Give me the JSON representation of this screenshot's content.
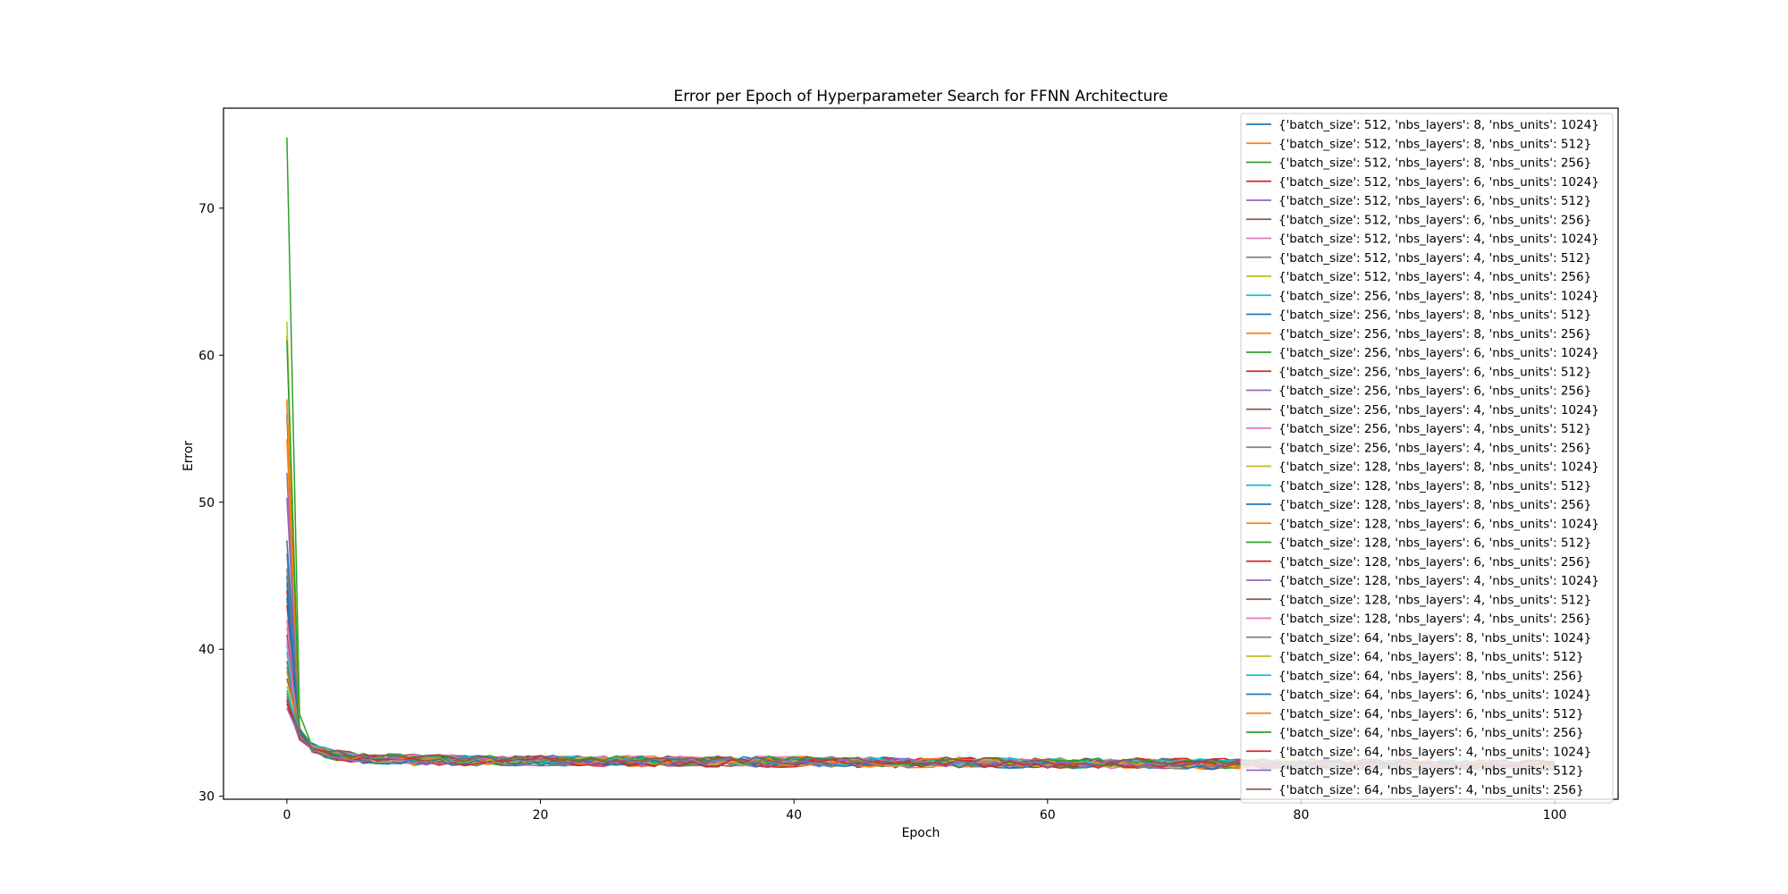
{
  "chart_data": {
    "type": "line",
    "title": "Error per Epoch of Hyperparameter Search for FFNN Architecture",
    "xlabel": "Epoch",
    "ylabel": "Error",
    "xlim": [
      -5,
      105
    ],
    "ylim": [
      29.8,
      76.8
    ],
    "xticks": [
      0,
      20,
      40,
      60,
      80,
      100
    ],
    "yticks": [
      30,
      40,
      50,
      60,
      70
    ],
    "grid": false,
    "legend_position": "top-right",
    "epochs": 101,
    "colors": [
      "#1f77b4",
      "#ff7f0e",
      "#2ca02c",
      "#d62728",
      "#9467bd",
      "#8c564b",
      "#e377c2",
      "#7f7f7f",
      "#bcbd22",
      "#17becf"
    ],
    "series": [
      {
        "name": "{'batch_size': 512, 'nbs_layers': 8, 'nbs_units': 1024}",
        "start": 45.0,
        "plateau": 32.4
      },
      {
        "name": "{'batch_size': 512, 'nbs_layers': 8, 'nbs_units': 512}",
        "start": 57.0,
        "plateau": 32.5
      },
      {
        "name": "{'batch_size': 512, 'nbs_layers': 8, 'nbs_units': 256}",
        "start": 74.8,
        "plateau": 32.6
      },
      {
        "name": "{'batch_size': 512, 'nbs_layers': 6, 'nbs_units': 1024}",
        "start": 44.0,
        "plateau": 32.4
      },
      {
        "name": "{'batch_size': 512, 'nbs_layers': 6, 'nbs_units': 512}",
        "start": 52.0,
        "plateau": 32.5
      },
      {
        "name": "{'batch_size': 512, 'nbs_layers': 6, 'nbs_units': 256}",
        "start": 56.0,
        "plateau": 32.6
      },
      {
        "name": "{'batch_size': 512, 'nbs_layers': 4, 'nbs_units': 1024}",
        "start": 41.5,
        "plateau": 32.4
      },
      {
        "name": "{'batch_size': 512, 'nbs_layers': 4, 'nbs_units': 512}",
        "start": 46.5,
        "plateau": 32.5
      },
      {
        "name": "{'batch_size': 512, 'nbs_layers': 4, 'nbs_units': 256}",
        "start": 62.3,
        "plateau": 32.6
      },
      {
        "name": "{'batch_size': 256, 'nbs_layers': 8, 'nbs_units': 1024}",
        "start": 40.3,
        "plateau": 32.4
      },
      {
        "name": "{'batch_size': 256, 'nbs_layers': 8, 'nbs_units': 512}",
        "start": 47.4,
        "plateau": 32.5
      },
      {
        "name": "{'batch_size': 256, 'nbs_layers': 8, 'nbs_units': 256}",
        "start": 54.3,
        "plateau": 32.6
      },
      {
        "name": "{'batch_size': 256, 'nbs_layers': 6, 'nbs_units': 1024}",
        "start": 39.2,
        "plateau": 32.4
      },
      {
        "name": "{'batch_size': 256, 'nbs_layers': 6, 'nbs_units': 512}",
        "start": 43.0,
        "plateau": 32.5
      },
      {
        "name": "{'batch_size': 256, 'nbs_layers': 6, 'nbs_units': 256}",
        "start": 50.3,
        "plateau": 32.6
      },
      {
        "name": "{'batch_size': 256, 'nbs_layers': 4, 'nbs_units': 1024}",
        "start": 38.0,
        "plateau": 32.4
      },
      {
        "name": "{'batch_size': 256, 'nbs_layers': 4, 'nbs_units': 512}",
        "start": 42.0,
        "plateau": 32.5
      },
      {
        "name": "{'batch_size': 256, 'nbs_layers': 4, 'nbs_units': 256}",
        "start": 45.5,
        "plateau": 32.6
      },
      {
        "name": "{'batch_size': 128, 'nbs_layers': 8, 'nbs_units': 1024}",
        "start": 37.5,
        "plateau": 32.4
      },
      {
        "name": "{'batch_size': 128, 'nbs_layers': 8, 'nbs_units': 512}",
        "start": 39.8,
        "plateau": 32.5
      },
      {
        "name": "{'batch_size': 128, 'nbs_layers': 8, 'nbs_units': 256}",
        "start": 43.5,
        "plateau": 32.6
      },
      {
        "name": "{'batch_size': 128, 'nbs_layers': 6, 'nbs_units': 1024}",
        "start": 38.5,
        "plateau": 32.4
      },
      {
        "name": "{'batch_size': 128, 'nbs_layers': 6, 'nbs_units': 512}",
        "start": 37.0,
        "plateau": 32.5
      },
      {
        "name": "{'batch_size': 128, 'nbs_layers': 6, 'nbs_units': 256}",
        "start": 36.5,
        "plateau": 32.6
      },
      {
        "name": "{'batch_size': 128, 'nbs_layers': 4, 'nbs_units': 1024}",
        "start": 36.8,
        "plateau": 32.4
      },
      {
        "name": "{'batch_size': 128, 'nbs_layers': 4, 'nbs_units': 512}",
        "start": 41.0,
        "plateau": 32.5
      },
      {
        "name": "{'batch_size': 128, 'nbs_layers': 4, 'nbs_units': 256}",
        "start": 40.5,
        "plateau": 32.6
      },
      {
        "name": "{'batch_size': 64, 'nbs_layers': 8, 'nbs_units': 1024}",
        "start": 38.8,
        "plateau": 32.4
      },
      {
        "name": "{'batch_size': 64, 'nbs_layers': 8, 'nbs_units': 512}",
        "start": 61.3,
        "plateau": 32.5
      },
      {
        "name": "{'batch_size': 64, 'nbs_layers': 8, 'nbs_units': 256}",
        "start": 37.2,
        "plateau": 32.6
      },
      {
        "name": "{'batch_size': 64, 'nbs_layers': 6, 'nbs_units': 1024}",
        "start": 44.5,
        "plateau": 32.4
      },
      {
        "name": "{'batch_size': 64, 'nbs_layers': 6, 'nbs_units': 512}",
        "start": 56.8,
        "plateau": 32.5
      },
      {
        "name": "{'batch_size': 64, 'nbs_layers': 6, 'nbs_units': 256}",
        "start": 61.0,
        "plateau": 32.6
      },
      {
        "name": "{'batch_size': 64, 'nbs_layers': 4, 'nbs_units': 1024}",
        "start": 36.3,
        "plateau": 32.4
      },
      {
        "name": "{'batch_size': 64, 'nbs_layers': 4, 'nbs_units': 512}",
        "start": 36.0,
        "plateau": 32.5
      },
      {
        "name": "{'batch_size': 64, 'nbs_layers': 4, 'nbs_units': 256}",
        "start": 36.6,
        "plateau": 32.6
      }
    ]
  }
}
